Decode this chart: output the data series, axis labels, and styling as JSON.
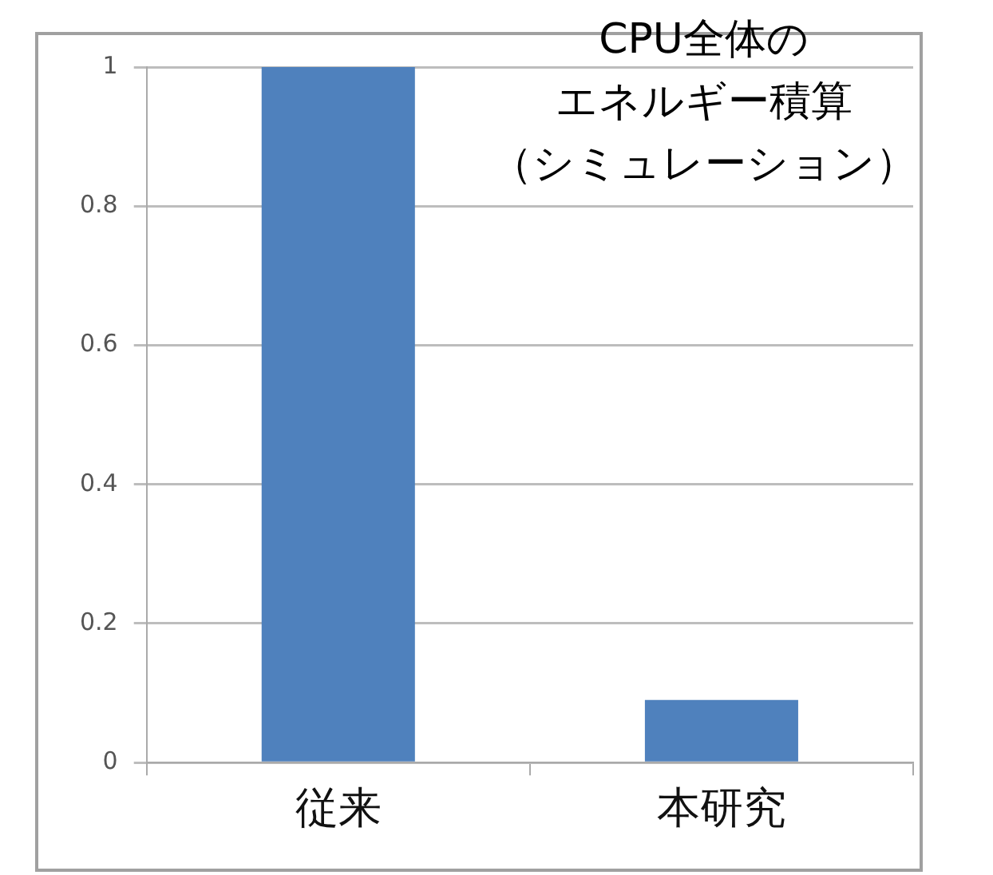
{
  "chart_data": {
    "type": "bar",
    "title": "CPU全体のエネルギー積算（シミュレーション）",
    "categories": [
      "従来",
      "本研究"
    ],
    "values": [
      1,
      0.09
    ],
    "color": "#4f81bd",
    "ylim": [
      0,
      1
    ],
    "yticks": [
      0,
      {
        "value": 0.2,
        "label": "0.2"
      },
      {
        "value": 0.4,
        "label": "0.4"
      },
      {
        "value": 0.6,
        "label": "0.6"
      },
      {
        "value": 0.8,
        "label": "0.8"
      },
      1
    ],
    "grid": "y",
    "legend": false
  }
}
